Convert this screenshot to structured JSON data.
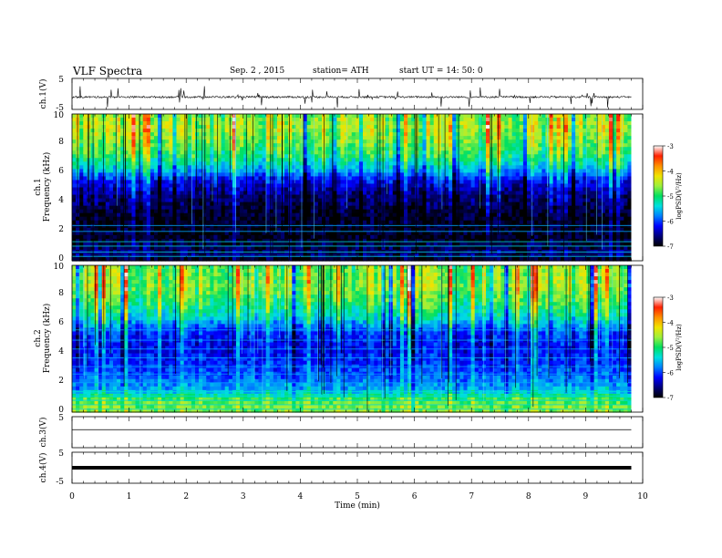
{
  "header": {
    "title": "VLF  Spectra",
    "date": "Sep. 2  , 2015",
    "station": "station= ATH",
    "start": "start  UT  =    14: 50: 0"
  },
  "colors": {
    "spectrum_scale": [
      "#000000",
      "#00007a",
      "#0000ff",
      "#0080ff",
      "#00e0e0",
      "#00e060",
      "#9cf03c",
      "#f0e400",
      "#ff9000",
      "#ff2000",
      "#ffffff"
    ]
  },
  "chart_data": [
    {
      "type": "line",
      "panel": "ch1 waveform",
      "ylabel": "ch.1(V)",
      "yticks": [
        "5",
        "-5"
      ],
      "ylim": [
        -5,
        5
      ],
      "x_range_min": [
        0,
        9.8
      ],
      "baseline_v": -1.0,
      "spike_range_v": [
        -4.5,
        2.5
      ]
    },
    {
      "type": "heatmap",
      "panel": "ch1 spectrogram",
      "ylabel": "ch.1\nFrequency  (kHz)",
      "yticks": [
        "0",
        "2",
        "4",
        "6",
        "8",
        "10"
      ],
      "ylim_khz": [
        0,
        10
      ],
      "x_range_min": [
        0,
        9.8
      ],
      "colorbar": {
        "label": "logPSD(V²/Hz)",
        "ticks": [
          "-3",
          "-4",
          "-5",
          "-6",
          "-7"
        ],
        "range": [
          -7,
          -3
        ]
      },
      "profile_khz_logpsd": [
        [
          0,
          -7
        ],
        [
          0.4,
          -6.6
        ],
        [
          1.5,
          -6.9
        ],
        [
          3,
          -6.9
        ],
        [
          4.5,
          -6.6
        ],
        [
          5.5,
          -6.2
        ],
        [
          6.2,
          -5.6
        ],
        [
          7.2,
          -5.0
        ],
        [
          8.2,
          -4.7
        ],
        [
          9.2,
          -4.5
        ],
        [
          10,
          -4.7
        ]
      ],
      "horizontal_lines_khz": [
        0.3,
        0.6,
        1.0,
        1.3,
        2.0,
        2.4
      ]
    },
    {
      "type": "heatmap",
      "panel": "ch2 spectrogram",
      "ylabel": "ch.2\nFrequency  (kHz)",
      "yticks": [
        "0",
        "2",
        "4",
        "6",
        "8",
        "10"
      ],
      "ylim_khz": [
        0,
        10
      ],
      "x_range_min": [
        0,
        9.8
      ],
      "colorbar": {
        "label": "logPSD(V²/Hz)",
        "ticks": [
          "-3",
          "-4",
          "-5",
          "-6",
          "-7"
        ],
        "range": [
          -7,
          -3
        ]
      },
      "profile_khz_logpsd": [
        [
          0,
          -4.6
        ],
        [
          0.8,
          -4.8
        ],
        [
          1.5,
          -5.6
        ],
        [
          2.5,
          -5.9
        ],
        [
          3.5,
          -6.1
        ],
        [
          4.5,
          -6.2
        ],
        [
          5.5,
          -6.0
        ],
        [
          6.5,
          -5.3
        ],
        [
          7.5,
          -4.9
        ],
        [
          8.5,
          -4.6
        ],
        [
          10,
          -4.7
        ]
      ],
      "horizontal_lines_khz": [
        0.2,
        0.5,
        0.8,
        1.1,
        1.4,
        2.0,
        2.6,
        3.1,
        3.7,
        4.3,
        4.9,
        5.6
      ]
    },
    {
      "type": "line",
      "panel": "ch3 waveform",
      "ylabel": "ch.3(V)",
      "yticks": [
        "5",
        "-5"
      ],
      "ylim": [
        -5,
        5
      ],
      "x_range_min": [
        0,
        9.8
      ],
      "baseline_v": 0.8
    },
    {
      "type": "line",
      "panel": "ch4 waveform",
      "ylabel": "ch.4(V)",
      "yticks": [
        "5",
        "-5"
      ],
      "ylim": [
        -5,
        5
      ],
      "x_range_min": [
        0,
        9.8
      ],
      "baseline_v": 0.0
    }
  ],
  "xaxis": {
    "label": "Time  (min)",
    "ticks": [
      "0",
      "1",
      "2",
      "3",
      "4",
      "5",
      "6",
      "7",
      "8",
      "9",
      "10"
    ],
    "xlim": [
      0,
      10
    ]
  }
}
